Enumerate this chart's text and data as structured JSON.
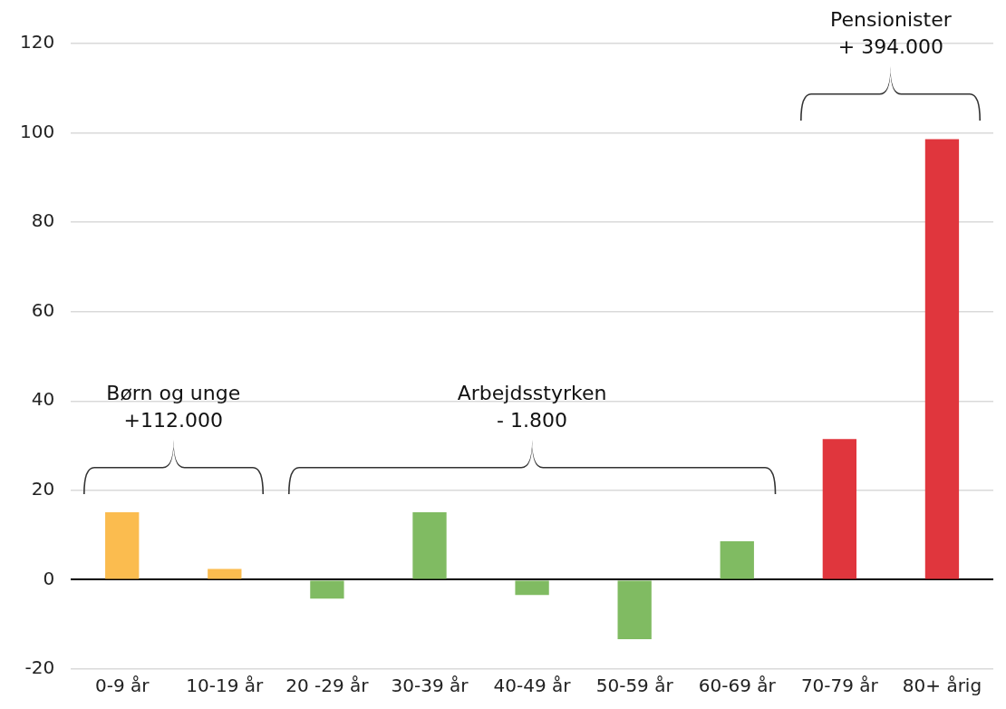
{
  "chart_data": {
    "type": "bar",
    "categories": [
      "0-9 år",
      "10-19 år",
      "20 -29 år",
      "30-39 år",
      "40-49 år",
      "50-59 år",
      "60-69 år",
      "70-79 år",
      "80+ årig"
    ],
    "values": [
      15.1,
      2.4,
      -4.2,
      15.1,
      -3.4,
      -13.3,
      8.6,
      31.5,
      98.6
    ],
    "colors": [
      "#fbbc4f",
      "#fbbc4f",
      "#80bb62",
      "#80bb62",
      "#80bb62",
      "#80bb62",
      "#80bb62",
      "#e0363d",
      "#e0363d"
    ],
    "ylim": [
      -20,
      120
    ],
    "yticks": [
      -20,
      0,
      20,
      40,
      60,
      80,
      100,
      120
    ],
    "grid": "y",
    "annotations": [
      "Børn og unge\n+112.000",
      "Arbejdsstyrken\n- 1.800",
      "Pensionister\n+ 394.000"
    ]
  }
}
